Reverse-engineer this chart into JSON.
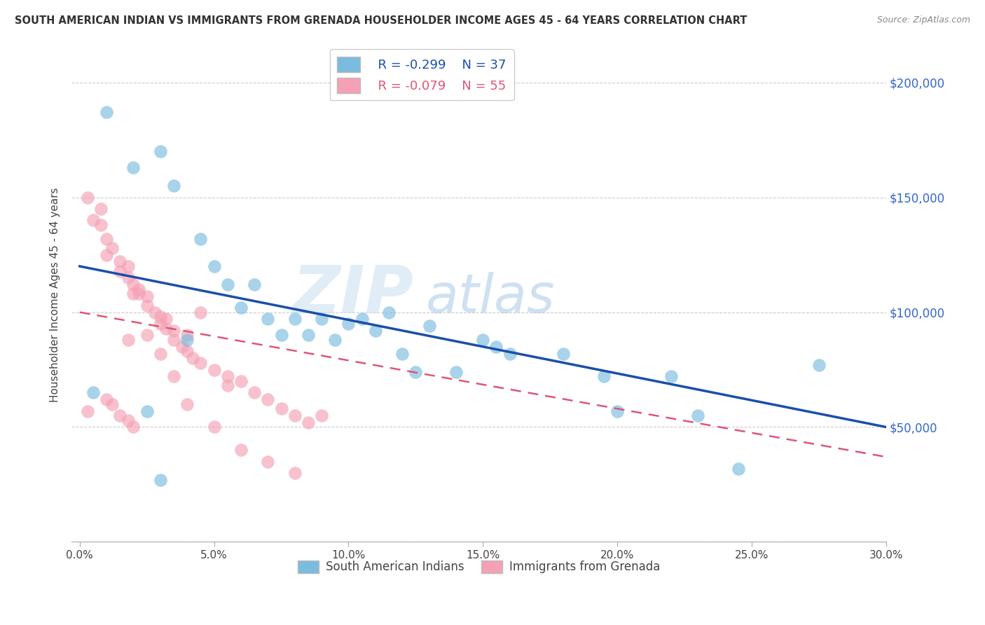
{
  "title": "SOUTH AMERICAN INDIAN VS IMMIGRANTS FROM GRENADA HOUSEHOLDER INCOME AGES 45 - 64 YEARS CORRELATION CHART",
  "source": "Source: ZipAtlas.com",
  "ylabel": "Householder Income Ages 45 - 64 years",
  "xlabel_ticks": [
    "0.0%",
    "5.0%",
    "10.0%",
    "15.0%",
    "20.0%",
    "25.0%",
    "30.0%"
  ],
  "xlabel_vals": [
    0,
    5,
    10,
    15,
    20,
    25,
    30
  ],
  "ylim": [
    0,
    215000
  ],
  "xlim": [
    -0.3,
    30
  ],
  "yticks": [
    0,
    50000,
    100000,
    150000,
    200000
  ],
  "ytick_labels_right": [
    "",
    "$50,000",
    "$100,000",
    "$150,000",
    "$200,000"
  ],
  "blue_label": "South American Indians",
  "pink_label": "Immigrants from Grenada",
  "blue_R": "R = -0.299",
  "blue_N": "N = 37",
  "pink_R": "R = -0.079",
  "pink_N": "N = 55",
  "blue_color": "#7abce0",
  "pink_color": "#f5a0b5",
  "blue_line_color": "#1a4faa",
  "pink_line_color": "#e05575",
  "watermark_zip": "ZIP",
  "watermark_atlas": "atlas",
  "background_color": "#ffffff",
  "blue_x": [
    1.0,
    2.0,
    3.0,
    3.5,
    4.5,
    5.0,
    5.5,
    6.0,
    6.5,
    7.0,
    7.5,
    8.0,
    8.5,
    9.0,
    9.5,
    10.0,
    10.5,
    11.0,
    11.5,
    12.0,
    12.5,
    13.0,
    14.0,
    15.0,
    15.5,
    16.0,
    18.0,
    19.5,
    20.0,
    22.0,
    23.0,
    24.5,
    27.5,
    0.5,
    2.5,
    3.0,
    4.0
  ],
  "blue_y": [
    187000,
    163000,
    170000,
    155000,
    132000,
    120000,
    112000,
    102000,
    112000,
    97000,
    90000,
    97000,
    90000,
    97000,
    88000,
    95000,
    97000,
    92000,
    100000,
    82000,
    74000,
    94000,
    74000,
    88000,
    85000,
    82000,
    82000,
    72000,
    57000,
    72000,
    55000,
    32000,
    77000,
    65000,
    57000,
    27000,
    88000
  ],
  "pink_x": [
    0.3,
    0.5,
    0.8,
    1.0,
    1.0,
    1.2,
    1.5,
    1.5,
    1.8,
    1.8,
    2.0,
    2.0,
    2.2,
    2.5,
    2.5,
    2.8,
    3.0,
    3.0,
    3.2,
    3.5,
    3.5,
    3.8,
    4.0,
    4.0,
    4.2,
    4.5,
    5.0,
    5.5,
    5.5,
    6.0,
    6.5,
    7.0,
    7.5,
    8.0,
    8.5,
    0.3,
    1.0,
    1.2,
    1.5,
    1.8,
    2.0,
    2.5,
    3.0,
    3.5,
    4.0,
    5.0,
    6.0,
    7.0,
    8.0,
    9.0,
    4.5,
    3.2,
    1.8,
    2.2,
    0.8
  ],
  "pink_y": [
    150000,
    140000,
    138000,
    132000,
    125000,
    128000,
    122000,
    118000,
    120000,
    115000,
    112000,
    108000,
    110000,
    107000,
    103000,
    100000,
    98000,
    95000,
    93000,
    92000,
    88000,
    85000,
    90000,
    83000,
    80000,
    78000,
    75000,
    72000,
    68000,
    70000,
    65000,
    62000,
    58000,
    55000,
    52000,
    57000,
    62000,
    60000,
    55000,
    53000,
    50000,
    90000,
    82000,
    72000,
    60000,
    50000,
    40000,
    35000,
    30000,
    55000,
    100000,
    97000,
    88000,
    108000,
    145000
  ]
}
